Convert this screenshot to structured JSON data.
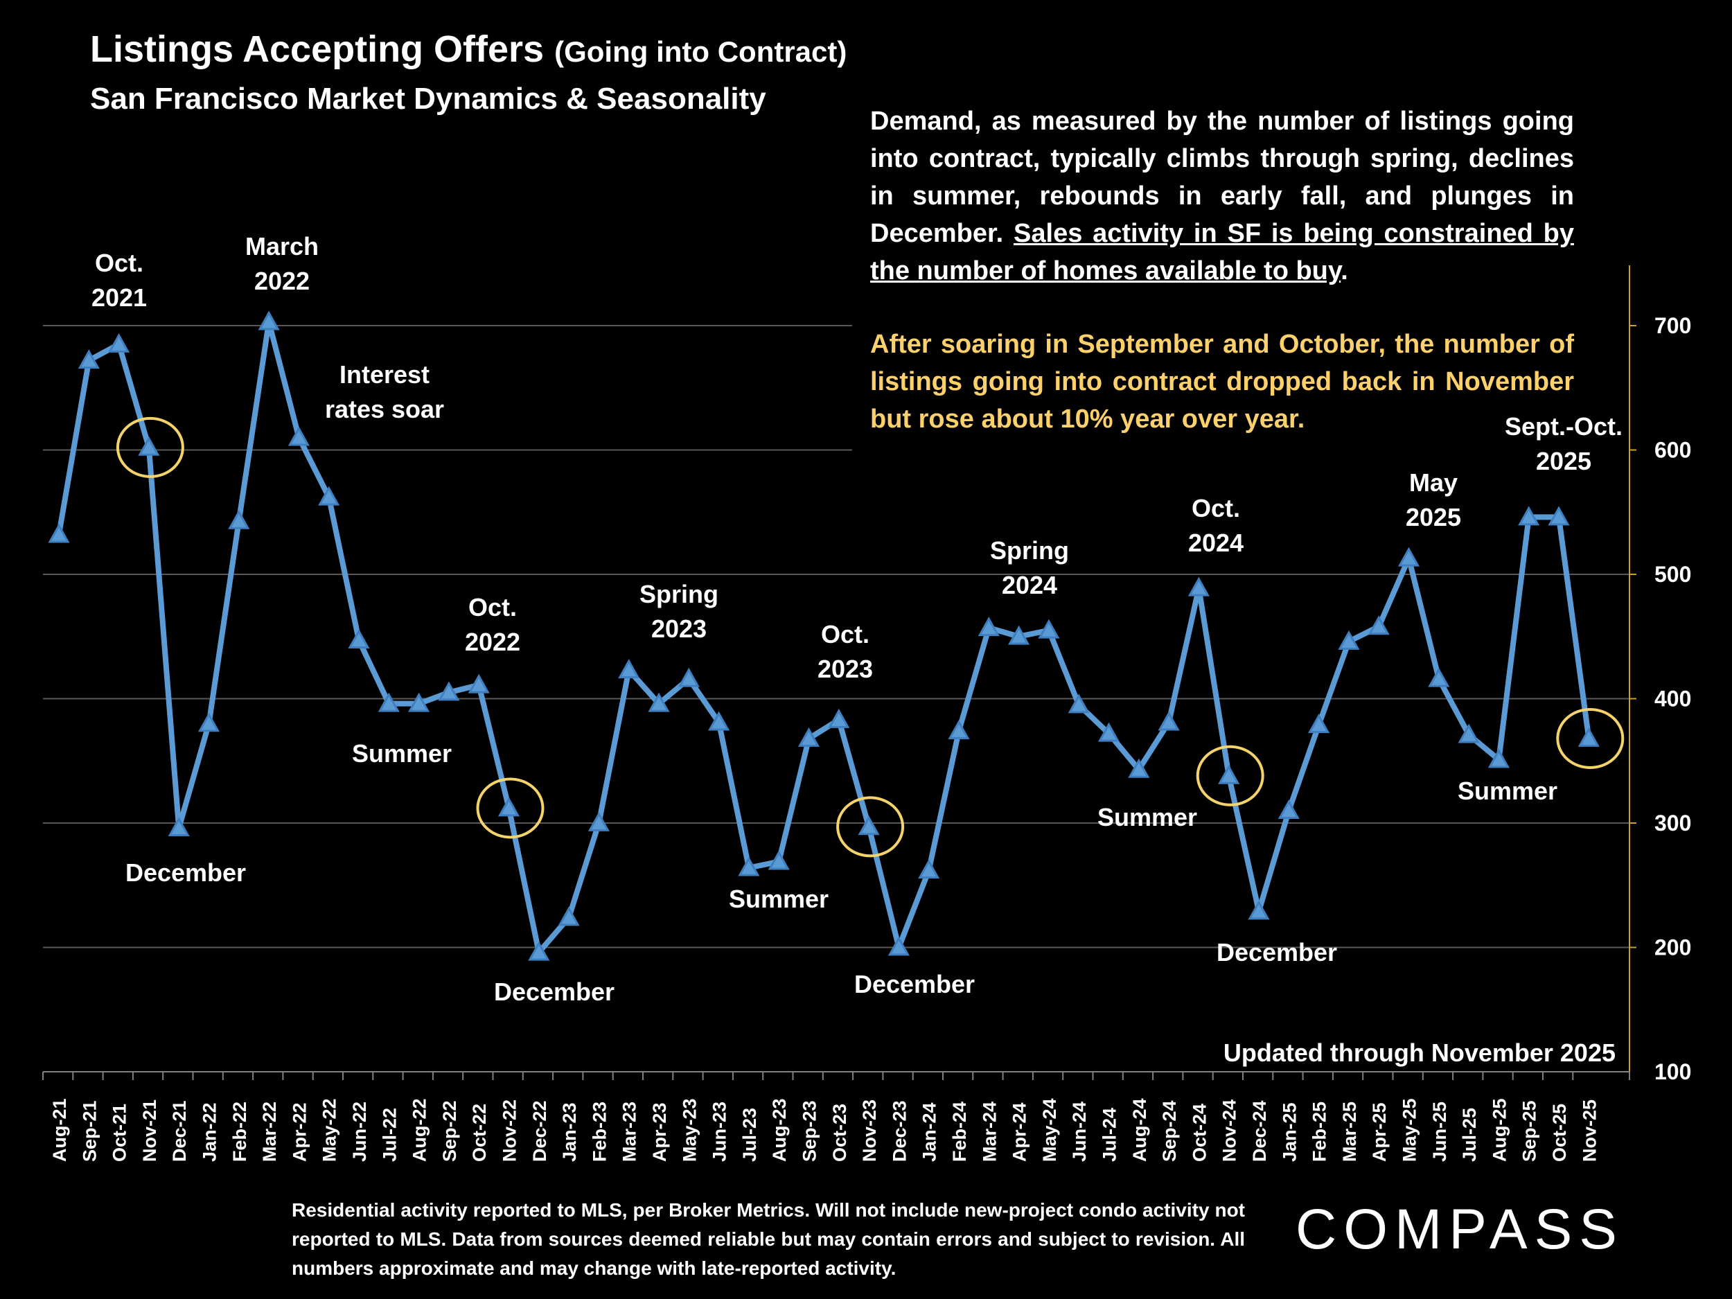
{
  "header": {
    "title": "Listings Accepting Offers",
    "title_suffix": "(Going into Contract)",
    "subtitle": "San Francisco Market Dynamics & Seasonality"
  },
  "commentary": {
    "p1_plain": "Demand, as measured by the number of listings going into contract, typically climbs through spring, declines in summer, rebounds in early fall, and plunges in December. ",
    "p1_underlined": "Sales activity in SF is being constrained by the number of homes available to  buy",
    "p1_end": ".",
    "p2": "After soaring in September and October, the number of listings going into contract dropped back in November but rose about 10% year over year."
  },
  "footer": {
    "note": "Residential activity reported to MLS, per Broker Metrics. Will not include new-project condo activity not reported to MLS. Data from sources deemed reliable but may contain errors and subject to revision. All numbers approximate and may change with late-reported activity.",
    "logo": "COMPASS"
  },
  "chart_data": {
    "type": "line",
    "title": "",
    "xlabel": "",
    "ylabel": "",
    "ylim": [
      100,
      700
    ],
    "yticks": [
      100,
      200,
      300,
      400,
      500,
      600,
      700
    ],
    "y_axis_side": "right",
    "grid": true,
    "colors": {
      "line": "#5b9bd5",
      "axis": "#c9a227",
      "highlight_circle": "#f5d36b",
      "grid": "#595959"
    },
    "categories": [
      "Aug-21",
      "Sep-21",
      "Oct-21",
      "Nov-21",
      "Dec-21",
      "Jan-22",
      "Feb-22",
      "Mar-22",
      "Apr-22",
      "May-22",
      "Jun-22",
      "Jul-22",
      "Aug-22",
      "Sep-22",
      "Oct-22",
      "Nov-22",
      "Dec-22",
      "Jan-23",
      "Feb-23",
      "Mar-23",
      "Apr-23",
      "May-23",
      "Jun-23",
      "Jul-23",
      "Aug-23",
      "Sep-23",
      "Oct-23",
      "Nov-23",
      "Dec-23",
      "Jan-24",
      "Feb-24",
      "Mar-24",
      "Apr-24",
      "May-24",
      "Jun-24",
      "Jul-24",
      "Aug-24",
      "Sep-24",
      "Oct-24",
      "Nov-24",
      "Dec-24",
      "Jan-25",
      "Feb-25",
      "Mar-25",
      "Apr-25",
      "May-25",
      "Jun-25",
      "Jul-25",
      "Aug-25",
      "Sep-25",
      "Oct-25",
      "Nov-25"
    ],
    "values": [
      532,
      672,
      685,
      602,
      296,
      380,
      543,
      703,
      610,
      562,
      447,
      396,
      396,
      405,
      411,
      312,
      196,
      224,
      300,
      423,
      396,
      416,
      381,
      264,
      269,
      368,
      383,
      297,
      200,
      262,
      374,
      457,
      450,
      455,
      395,
      372,
      343,
      381,
      489,
      338,
      229,
      310,
      379,
      446,
      458,
      513,
      416,
      371,
      351,
      546,
      546,
      368
    ],
    "highlighted": [
      "Nov-21",
      "Nov-22",
      "Nov-23",
      "Nov-24",
      "Nov-25"
    ],
    "annotations": [
      {
        "lines": [
          "Oct.",
          "2021"
        ]
      },
      {
        "lines": [
          "March",
          "2022"
        ]
      },
      {
        "lines": [
          "Interest",
          "rates soar"
        ]
      },
      {
        "lines": [
          "December"
        ]
      },
      {
        "lines": [
          "Summer"
        ]
      },
      {
        "lines": [
          "Oct.",
          "2022"
        ]
      },
      {
        "lines": [
          "December"
        ]
      },
      {
        "lines": [
          "Spring",
          "2023"
        ]
      },
      {
        "lines": [
          "Summer"
        ]
      },
      {
        "lines": [
          "Oct.",
          "2023"
        ]
      },
      {
        "lines": [
          "December"
        ]
      },
      {
        "lines": [
          "Spring",
          "2024"
        ]
      },
      {
        "lines": [
          "Summer"
        ]
      },
      {
        "lines": [
          "Oct.",
          "2024"
        ]
      },
      {
        "lines": [
          "December"
        ]
      },
      {
        "lines": [
          "May",
          "2025"
        ]
      },
      {
        "lines": [
          "Sept.-Oct.",
          "2025"
        ]
      },
      {
        "lines": [
          "Summer"
        ]
      }
    ],
    "updated_note": "Updated through November 2025"
  }
}
